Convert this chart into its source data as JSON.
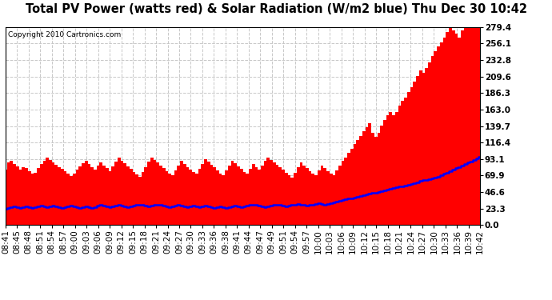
{
  "title": "Total PV Power (watts red) & Solar Radiation (W/m2 blue) Thu Dec 30 10:42",
  "copyright": "Copyright 2010 Cartronics.com",
  "yticks": [
    0.0,
    23.3,
    46.6,
    69.9,
    93.1,
    116.4,
    139.7,
    163.0,
    186.3,
    209.6,
    232.8,
    256.1,
    279.4
  ],
  "ymax": 279.4,
  "ymin": 0.0,
  "xtick_labels": [
    "08:41",
    "08:45",
    "08:48",
    "08:51",
    "08:54",
    "08:57",
    "09:00",
    "09:03",
    "09:06",
    "09:09",
    "09:12",
    "09:15",
    "09:18",
    "09:21",
    "09:24",
    "09:27",
    "09:30",
    "09:33",
    "09:36",
    "09:38",
    "09:41",
    "09:44",
    "09:47",
    "09:49",
    "09:51",
    "09:54",
    "09:57",
    "10:00",
    "10:03",
    "10:06",
    "10:09",
    "10:12",
    "10:15",
    "10:18",
    "10:21",
    "10:24",
    "10:27",
    "10:30",
    "10:33",
    "10:36",
    "10:39",
    "10:42"
  ],
  "red_color": "#FF0000",
  "blue_color": "#0000FF",
  "bg_color": "#FFFFFF",
  "plot_bg_color": "#FFFFFF",
  "grid_color": "#C8C8C8",
  "title_fontsize": 10.5,
  "tick_fontsize": 7.5,
  "red_values": [
    78,
    88,
    91,
    86,
    83,
    78,
    82,
    80,
    76,
    73,
    74,
    80,
    86,
    91,
    95,
    92,
    88,
    85,
    82,
    79,
    76,
    72,
    69,
    73,
    78,
    83,
    87,
    91,
    86,
    82,
    78,
    84,
    88,
    84,
    80,
    76,
    83,
    89,
    95,
    91,
    87,
    83,
    79,
    75,
    71,
    68,
    75,
    82,
    89,
    95,
    92,
    88,
    84,
    80,
    76,
    73,
    70,
    77,
    84,
    91,
    86,
    82,
    78,
    75,
    72,
    79,
    86,
    93,
    89,
    85,
    81,
    77,
    73,
    70,
    77,
    84,
    91,
    87,
    83,
    79,
    75,
    72,
    79,
    86,
    82,
    78,
    84,
    91,
    95,
    92,
    88,
    85,
    82,
    78,
    74,
    70,
    67,
    74,
    81,
    88,
    84,
    80,
    76,
    73,
    70,
    77,
    84,
    80,
    76,
    73,
    70,
    77,
    84,
    91,
    95,
    102,
    108,
    114,
    120,
    126,
    132,
    138,
    144,
    130,
    125,
    130,
    140,
    148,
    155,
    160,
    155,
    160,
    168,
    175,
    180,
    188,
    195,
    202,
    210,
    218,
    215,
    222,
    230,
    238,
    245,
    252,
    258,
    265,
    272,
    279,
    275,
    270,
    265,
    275,
    279,
    279,
    279,
    279,
    279,
    279
  ],
  "blue_values": [
    23,
    24,
    25,
    26,
    25,
    24,
    25,
    26,
    25,
    24,
    25,
    26,
    27,
    26,
    25,
    26,
    27,
    26,
    25,
    24,
    25,
    26,
    27,
    26,
    25,
    24,
    25,
    26,
    25,
    24,
    25,
    27,
    28,
    27,
    26,
    25,
    26,
    27,
    28,
    27,
    26,
    25,
    26,
    27,
    28,
    29,
    28,
    27,
    26,
    27,
    28,
    29,
    28,
    27,
    26,
    25,
    26,
    27,
    28,
    27,
    26,
    25,
    26,
    27,
    26,
    25,
    26,
    27,
    26,
    25,
    24,
    25,
    26,
    25,
    24,
    25,
    26,
    27,
    26,
    25,
    26,
    27,
    28,
    29,
    28,
    27,
    26,
    25,
    26,
    27,
    28,
    29,
    28,
    27,
    26,
    27,
    28,
    29,
    30,
    29,
    28,
    27,
    28,
    29,
    30,
    31,
    30,
    29,
    30,
    31,
    32,
    33,
    34,
    35,
    36,
    37,
    38,
    39,
    40,
    41,
    42,
    43,
    44,
    45,
    46,
    47,
    48,
    49,
    50,
    51,
    52,
    53,
    54,
    55,
    56,
    57,
    58,
    59,
    60,
    62,
    63,
    64,
    65,
    66,
    67,
    68,
    70,
    72,
    74,
    76,
    78,
    80,
    82,
    84,
    86,
    88,
    90,
    92,
    94,
    96
  ]
}
